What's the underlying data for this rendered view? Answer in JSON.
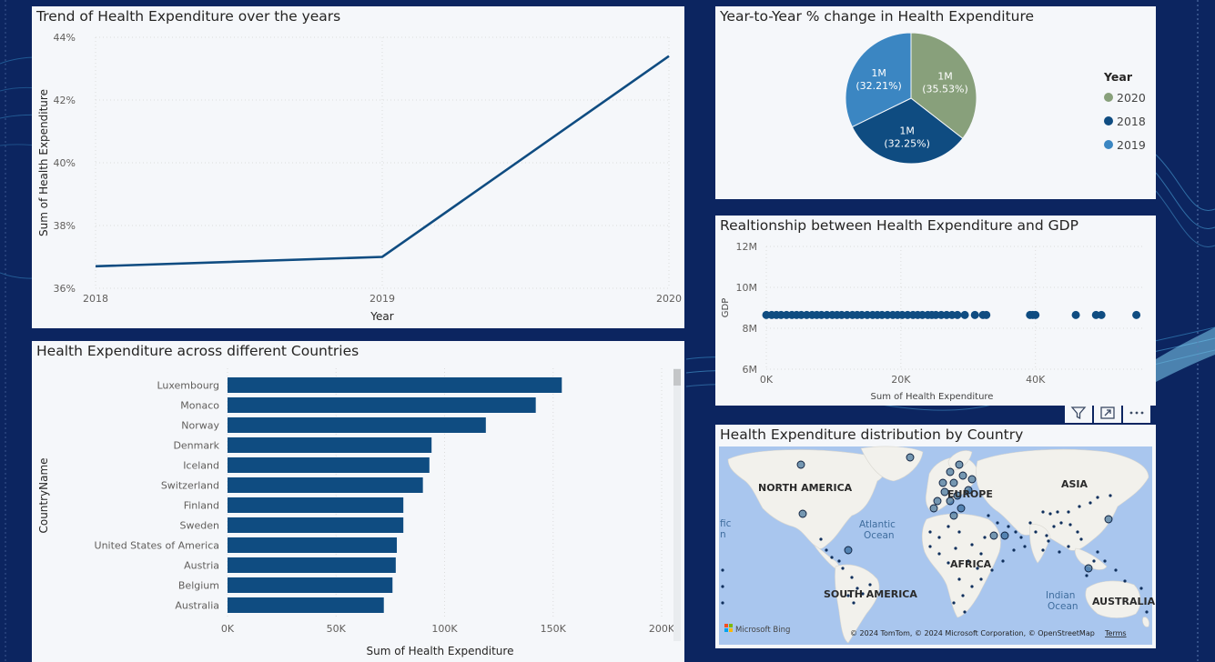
{
  "panels": {
    "trend": {
      "title": "Trend of Health Expenditure over the years"
    },
    "pie": {
      "title": "Year-to-Year % change in Health Expenditure"
    },
    "scatter": {
      "title": "Realtionship between Health Expenditure and GDP"
    },
    "bar": {
      "title": "Health Expenditure across different Countries"
    },
    "map": {
      "title": "Health Expenditure distribution by Country",
      "labels": {
        "north_america": "NORTH AMERICA",
        "europe": "EUROPE",
        "asia": "ASIA",
        "africa": "AFRICA",
        "south_america": "SOUTH AMERICA",
        "australia": "AUSTRALIA",
        "atlantic": "Atlantic",
        "ocean": "Ocean",
        "indian": "Indian",
        "indian_ocean": "Ocean",
        "pacific_fragment": "fic",
        "pacific_fragment2": "n"
      },
      "brand": "Microsoft Bing",
      "copyright": "© 2024 TomTom, © 2024 Microsoft Corporation, © OpenStreetMap",
      "terms": "Terms"
    }
  },
  "colors": {
    "background": "#0c2560",
    "panel": "#f5f7fa",
    "line": "#0f4c81",
    "bar": "#0f4c81",
    "pie_2020": "#88a07b",
    "pie_2018": "#0f4c81",
    "pie_2019": "#3b86c2",
    "map_water": "#a9c6ee",
    "map_land": "#f2f1ec"
  },
  "chart_data": [
    {
      "id": "trend",
      "type": "line",
      "title": "Trend of Health Expenditure over the years",
      "xlabel": "Year",
      "ylabel": "Sum of Health Expenditure",
      "x": [
        "2018",
        "2019",
        "2020"
      ],
      "values": [
        36.7,
        37.0,
        43.4
      ],
      "ylim": [
        36,
        44
      ],
      "yticks": [
        "36%",
        "38%",
        "40%",
        "42%",
        "44%"
      ],
      "ytick_values": [
        36,
        38,
        40,
        42,
        44
      ]
    },
    {
      "id": "pie",
      "type": "pie",
      "title": "Year-to-Year % change in Health Expenditure",
      "legend_title": "Year",
      "slices": [
        {
          "name": "2020",
          "value": 35.53,
          "label": "1M",
          "pct": "(35.53%)",
          "color": "#88a07b"
        },
        {
          "name": "2018",
          "value": 32.25,
          "label": "1M",
          "pct": "(32.25%)",
          "color": "#0f4c81"
        },
        {
          "name": "2019",
          "value": 32.21,
          "label": "1M",
          "pct": "(32.21%)",
          "color": "#3b86c2"
        }
      ]
    },
    {
      "id": "scatter",
      "type": "scatter",
      "title": "Realtionship between Health Expenditure and GDP",
      "xlabel": "Sum of Health Expenditure",
      "ylabel": "GDP",
      "xlim": [
        0,
        56000
      ],
      "ylim": [
        6000000,
        12000000
      ],
      "xticks": [
        "0K",
        "20K",
        "40K"
      ],
      "xtick_values": [
        0,
        20000,
        40000
      ],
      "yticks": [
        "6M",
        "8M",
        "10M",
        "12M"
      ],
      "ytick_values": [
        6000000,
        8000000,
        10000000,
        12000000
      ],
      "y_constant": 8650000,
      "points_x": [
        0,
        800,
        1500,
        2200,
        3000,
        3800,
        4500,
        5200,
        6000,
        6800,
        7500,
        8200,
        9000,
        9800,
        10500,
        11200,
        12000,
        12800,
        13500,
        14200,
        15000,
        15800,
        16500,
        17200,
        18000,
        18800,
        19500,
        20200,
        21000,
        21800,
        22500,
        23200,
        24000,
        24600,
        25200,
        26000,
        26800,
        27600,
        28400,
        29500,
        31000,
        32200,
        32700,
        39200,
        39600,
        40000,
        46000,
        49000,
        49800,
        55000
      ]
    },
    {
      "id": "bar",
      "type": "bar",
      "orientation": "horizontal",
      "title": "Health Expenditure across different Countries",
      "xlabel": "Sum of Health Expenditure",
      "ylabel": "CountryName",
      "categories": [
        "Luxembourg",
        "Monaco",
        "Norway",
        "Denmark",
        "Iceland",
        "Switzerland",
        "Finland",
        "Sweden",
        "United States of America",
        "Austria",
        "Belgium",
        "Australia"
      ],
      "values": [
        154000,
        142000,
        119000,
        94000,
        93000,
        90000,
        81000,
        81000,
        78000,
        77500,
        76000,
        72000
      ],
      "xlim": [
        0,
        200000
      ],
      "xticks": [
        "0K",
        "50K",
        "100K",
        "150K",
        "200K"
      ],
      "xtick_values": [
        0,
        50000,
        100000,
        150000,
        200000
      ]
    }
  ]
}
